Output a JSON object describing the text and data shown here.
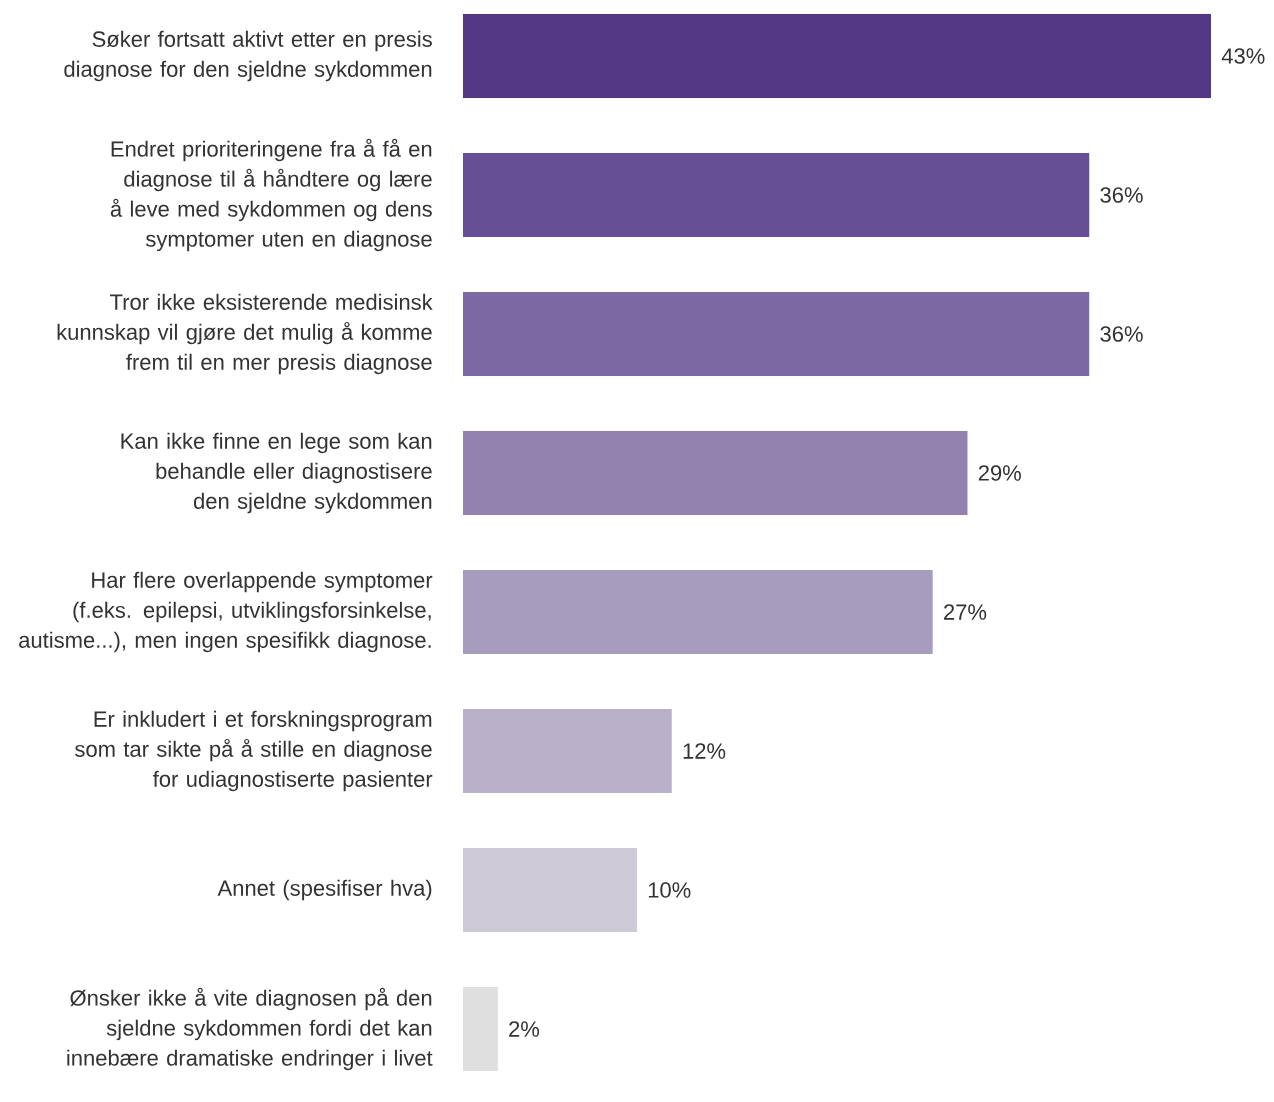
{
  "chart_data": {
    "type": "bar",
    "orientation": "horizontal",
    "categories": [
      "Søker fortsatt aktivt etter en presis diagnose for den sjeldne sykdommen",
      "Endret prioriteringene fra å få en diagnose til å håndtere og lære å leve med sykdommen og dens symptomer uten en diagnose",
      "Tror ikke eksisterende medisinsk kunnskap vil gjøre det mulig å komme frem til en mer presis diagnose",
      "Kan ikke finne en lege som kan behandle eller diagnostisere den sjeldne sykdommen",
      "Har flere overlappende symptomer (f.eks. epilepsi, utviklingsforsinkelse, autisme...), men ingen spesifikk diagnose.",
      "Er inkludert i et forskningsprogram som tar sikte på å stille en diagnose for udiagnostiserte pasienter",
      "Annet (spesifiser hva)",
      "Ønsker ikke å vite diagnosen på den sjeldne sykdommen fordi det kan innebære dramatiske endringer i livet"
    ],
    "values": [
      43,
      36,
      36,
      29,
      27,
      12,
      10,
      2
    ],
    "value_labels": [
      "43%",
      "36%",
      "36%",
      "29%",
      "27%",
      "12%",
      "10%",
      "2%"
    ],
    "colors": [
      "#543886",
      "#674f96",
      "#7c69a4",
      "#9381b0",
      "#a69cbd",
      "#b8b1c9",
      "#cdc9d6",
      "#dfdfdf"
    ]
  }
}
